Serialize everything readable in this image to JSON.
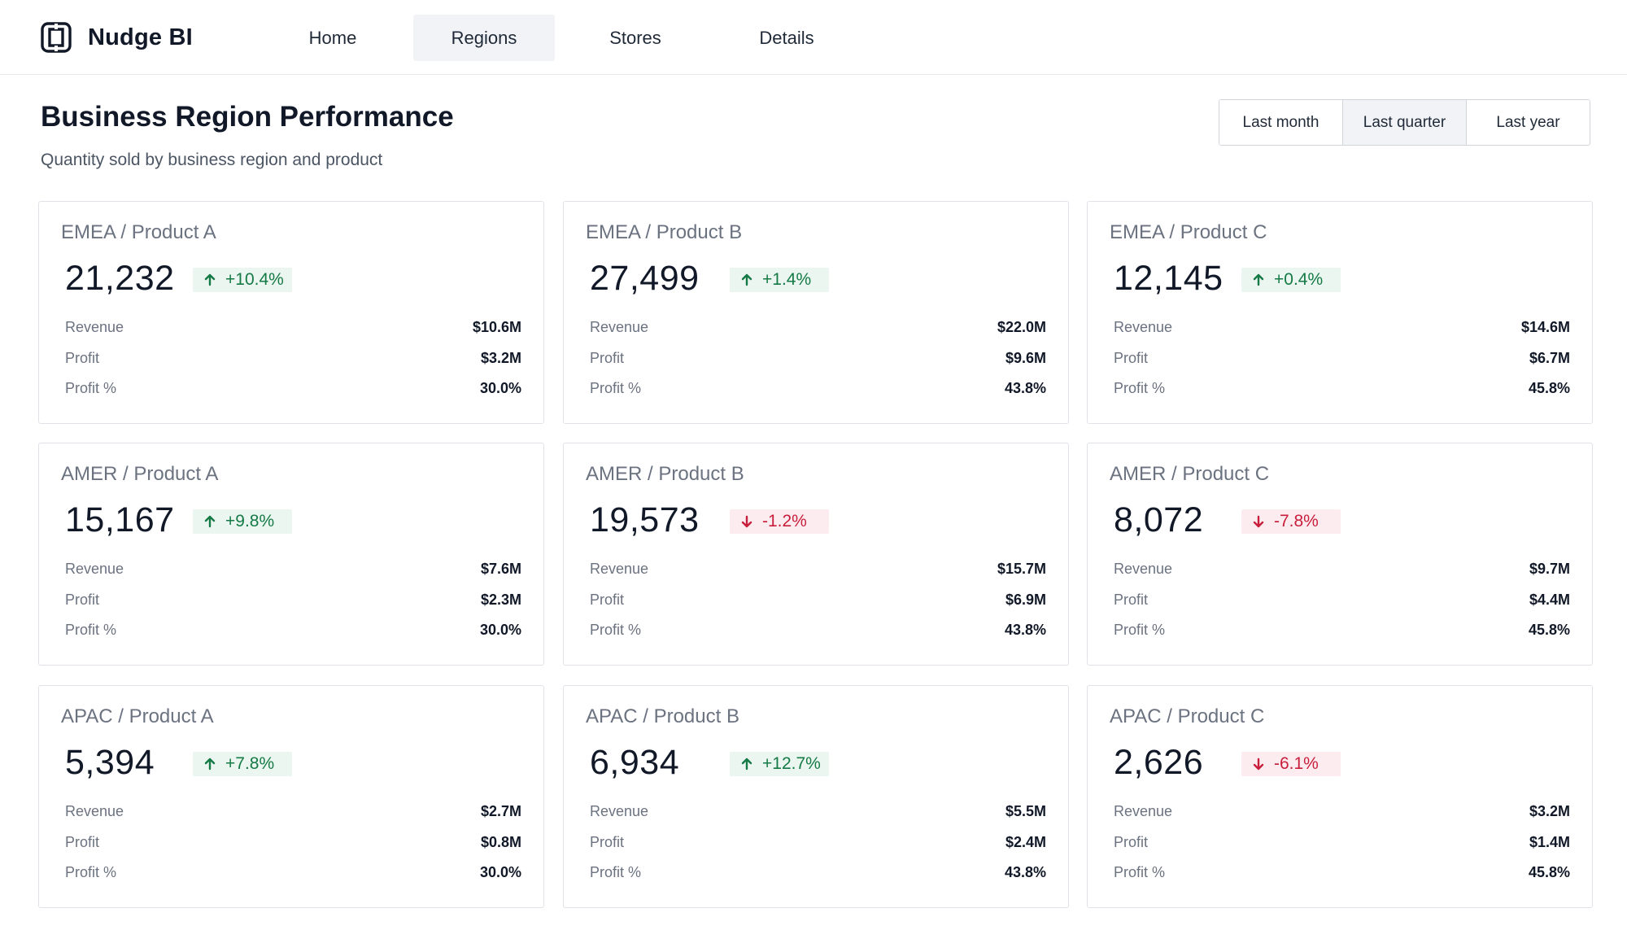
{
  "app": {
    "name": "Nudge BI"
  },
  "nav": [
    {
      "label": "Home",
      "active": false
    },
    {
      "label": "Regions",
      "active": true
    },
    {
      "label": "Stores",
      "active": false
    },
    {
      "label": "Details",
      "active": false
    }
  ],
  "page": {
    "title": "Business Region Performance",
    "subtitle": "Quantity sold by business region and product"
  },
  "range_filter": [
    {
      "label": "Last month",
      "active": false
    },
    {
      "label": "Last quarter",
      "active": true
    },
    {
      "label": "Last year",
      "active": false
    }
  ],
  "colors": {
    "positive_bg": "#eaf6ef",
    "positive_text": "#157a46",
    "negative_bg": "#fdecef",
    "negative_text": "#c81e3c",
    "active_bg": "#f1f3f6"
  },
  "metric_labels": {
    "revenue": "Revenue",
    "profit": "Profit",
    "profit_pct": "Profit %"
  },
  "cards": [
    {
      "title": "EMEA / Product A",
      "value": "21,232",
      "delta": "+10.4%",
      "trend": "up",
      "revenue": "$10.6M",
      "profit": "$3.2M",
      "profit_pct": "30.0%"
    },
    {
      "title": "EMEA / Product B",
      "value": "27,499",
      "delta": "+1.4%",
      "trend": "up",
      "revenue": "$22.0M",
      "profit": "$9.6M",
      "profit_pct": "43.8%"
    },
    {
      "title": "EMEA / Product C",
      "value": "12,145",
      "delta": "+0.4%",
      "trend": "up",
      "revenue": "$14.6M",
      "profit": "$6.7M",
      "profit_pct": "45.8%"
    },
    {
      "title": "AMER / Product A",
      "value": "15,167",
      "delta": "+9.8%",
      "trend": "up",
      "revenue": "$7.6M",
      "profit": "$2.3M",
      "profit_pct": "30.0%"
    },
    {
      "title": "AMER / Product B",
      "value": "19,573",
      "delta": "-1.2%",
      "trend": "down",
      "revenue": "$15.7M",
      "profit": "$6.9M",
      "profit_pct": "43.8%"
    },
    {
      "title": "AMER / Product C",
      "value": "8,072",
      "delta": "-7.8%",
      "trend": "down",
      "revenue": "$9.7M",
      "profit": "$4.4M",
      "profit_pct": "45.8%"
    },
    {
      "title": "APAC / Product A",
      "value": "5,394",
      "delta": "+7.8%",
      "trend": "up",
      "revenue": "$2.7M",
      "profit": "$0.8M",
      "profit_pct": "30.0%"
    },
    {
      "title": "APAC / Product B",
      "value": "6,934",
      "delta": "+12.7%",
      "trend": "up",
      "revenue": "$5.5M",
      "profit": "$2.4M",
      "profit_pct": "43.8%"
    },
    {
      "title": "APAC / Product C",
      "value": "2,626",
      "delta": "-6.1%",
      "trend": "down",
      "revenue": "$3.2M",
      "profit": "$1.4M",
      "profit_pct": "45.8%"
    }
  ]
}
